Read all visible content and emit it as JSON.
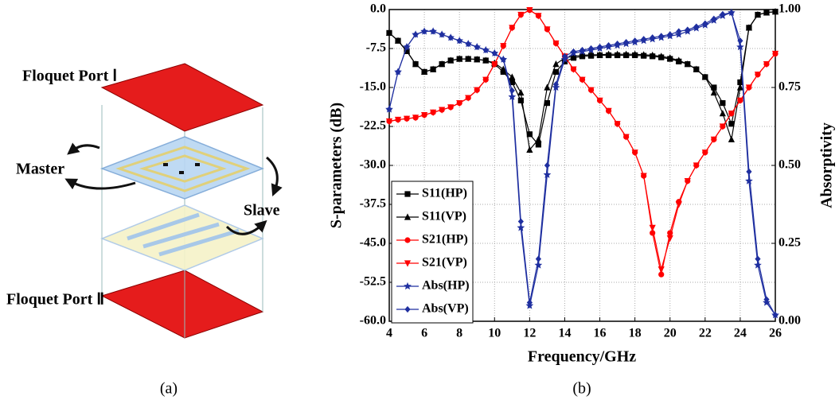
{
  "figure_a": {
    "port_top": "Floquet Port Ⅰ",
    "master": "Master",
    "slave": "Slave",
    "port_bottom": "Floquet Port Ⅱ",
    "caption": "(a)"
  },
  "chart_data": {
    "type": "line",
    "caption": "(b)",
    "x_label": "Frequency/GHz",
    "y_label": "S-parameters (dB)",
    "y2_label": "Absorptivity",
    "xlim": [
      4,
      26
    ],
    "xticks": [
      4,
      6,
      8,
      10,
      12,
      14,
      16,
      18,
      20,
      22,
      24,
      26
    ],
    "ylim": [
      -60,
      0
    ],
    "yticks": [
      {
        "value": -60,
        "label": "-60.0"
      },
      -52.5,
      {
        "value": -45,
        "label": "-45.0"
      },
      -37.5,
      {
        "value": -30,
        "label": "-30.0"
      },
      -22.5,
      {
        "value": -15,
        "label": "-15.0"
      },
      -7.5,
      {
        "value": 0,
        "label": "0.0"
      }
    ],
    "y2lim": [
      0,
      1
    ],
    "y2ticks": [
      {
        "value": 0,
        "label": "0.00"
      },
      {
        "value": 0.25,
        "label": "0.25"
      },
      {
        "value": 0.5,
        "label": "0.50"
      },
      {
        "value": 0.75,
        "label": "0.75"
      },
      {
        "value": 1,
        "label": "1.00"
      }
    ],
    "grid": true,
    "legend": "lower left",
    "x": [
      4,
      4.5,
      5,
      5.5,
      6,
      6.5,
      7,
      7.5,
      8,
      8.5,
      9,
      9.5,
      10,
      10.5,
      11,
      11.5,
      12,
      12.5,
      13,
      13.5,
      14,
      14.5,
      15,
      15.5,
      16,
      16.5,
      17,
      17.5,
      18,
      18.5,
      19,
      19.5,
      20,
      20.5,
      21,
      21.5,
      22,
      22.5,
      23,
      23.5,
      24,
      24.5,
      25,
      25.5,
      26
    ],
    "series": [
      {
        "name": "S11(HP)",
        "color": "#000000",
        "marker": "square",
        "axis": "y",
        "values": [
          -4.5,
          -6,
          -8,
          -10.5,
          -12,
          -11.5,
          -10.5,
          -9.8,
          -9.5,
          -9.5,
          -9.6,
          -9.8,
          -10.5,
          -12,
          -14,
          -17.5,
          -24,
          -26,
          -18,
          -12,
          -10,
          -9.3,
          -9,
          -8.9,
          -8.8,
          -8.8,
          -8.8,
          -8.8,
          -8.8,
          -8.9,
          -9,
          -9.2,
          -9.5,
          -10,
          -10.5,
          -11.5,
          -13,
          -15,
          -18,
          -22,
          -14,
          -3.5,
          -1,
          -0.6,
          -0.4
        ]
      },
      {
        "name": "S11(VP)",
        "color": "#000000",
        "marker": "triangle",
        "axis": "y",
        "values": [
          -4.5,
          -6,
          -8,
          -10.5,
          -12,
          -11.5,
          -10.5,
          -9.8,
          -9.5,
          -9.5,
          -9.6,
          -9.8,
          -10.3,
          -11.5,
          -13,
          -16,
          -27,
          -25,
          -15,
          -10.5,
          -9.3,
          -9,
          -8.8,
          -8.7,
          -8.7,
          -8.6,
          -8.6,
          -8.6,
          -8.6,
          -8.7,
          -8.8,
          -9,
          -9.3,
          -9.8,
          -10.5,
          -11.5,
          -13,
          -16,
          -20,
          -25,
          -15,
          -3.5,
          -1,
          -0.6,
          -0.4
        ]
      },
      {
        "name": "S21(HP)",
        "color": "#ff0000",
        "marker": "circle",
        "axis": "y",
        "values": [
          -21.5,
          -21.2,
          -21,
          -20.8,
          -20.3,
          -19.8,
          -19.3,
          -18.8,
          -18,
          -17,
          -15.5,
          -13.5,
          -10.5,
          -7,
          -3.5,
          -1,
          -0.1,
          -1.2,
          -3.8,
          -6.5,
          -9,
          -11.5,
          -13.5,
          -15.5,
          -17.5,
          -19.5,
          -22,
          -24.5,
          -27.5,
          -32,
          -43,
          -51,
          -43,
          -37,
          -33,
          -30,
          -27.5,
          -25,
          -22.5,
          -20,
          -17.5,
          -15,
          -12.5,
          -10.5,
          -8.5
        ]
      },
      {
        "name": "S21(VP)",
        "color": "#ff0000",
        "marker": "tridown",
        "axis": "y",
        "values": [
          -21.5,
          -21.2,
          -21,
          -20.8,
          -20.3,
          -19.8,
          -19.3,
          -18.8,
          -18,
          -17,
          -15.5,
          -13.5,
          -10.5,
          -7,
          -3.5,
          -1,
          -0.1,
          -1.2,
          -3.8,
          -6.5,
          -9,
          -11.5,
          -13.5,
          -15.5,
          -17.5,
          -19.5,
          -22,
          -24.5,
          -27.5,
          -32,
          -42,
          -50,
          -44,
          -37.5,
          -33,
          -30,
          -27.5,
          -25,
          -22.5,
          -20,
          -17.5,
          -15,
          -12.5,
          -10.5,
          -8.5
        ]
      },
      {
        "name": "Abs(HP)",
        "color": "#1f2fa0",
        "marker": "star",
        "axis": "y2",
        "values": [
          0.68,
          0.8,
          0.88,
          0.92,
          0.93,
          0.93,
          0.92,
          0.91,
          0.9,
          0.89,
          0.88,
          0.87,
          0.86,
          0.84,
          0.72,
          0.3,
          0.05,
          0.18,
          0.47,
          0.75,
          0.84,
          0.86,
          0.865,
          0.87,
          0.875,
          0.88,
          0.885,
          0.89,
          0.895,
          0.9,
          0.905,
          0.91,
          0.915,
          0.92,
          0.93,
          0.94,
          0.95,
          0.965,
          0.98,
          0.99,
          0.88,
          0.45,
          0.18,
          0.06,
          0.02
        ]
      },
      {
        "name": "Abs(VP)",
        "color": "#1f2fa0",
        "marker": "diamond",
        "axis": "y2",
        "values": [
          0.68,
          0.8,
          0.88,
          0.92,
          0.93,
          0.93,
          0.92,
          0.91,
          0.9,
          0.89,
          0.88,
          0.87,
          0.86,
          0.84,
          0.74,
          0.32,
          0.06,
          0.2,
          0.5,
          0.76,
          0.85,
          0.865,
          0.87,
          0.875,
          0.88,
          0.885,
          0.89,
          0.895,
          0.9,
          0.905,
          0.91,
          0.915,
          0.92,
          0.93,
          0.935,
          0.945,
          0.955,
          0.97,
          0.985,
          0.99,
          0.9,
          0.48,
          0.2,
          0.07,
          0.02
        ]
      }
    ]
  }
}
